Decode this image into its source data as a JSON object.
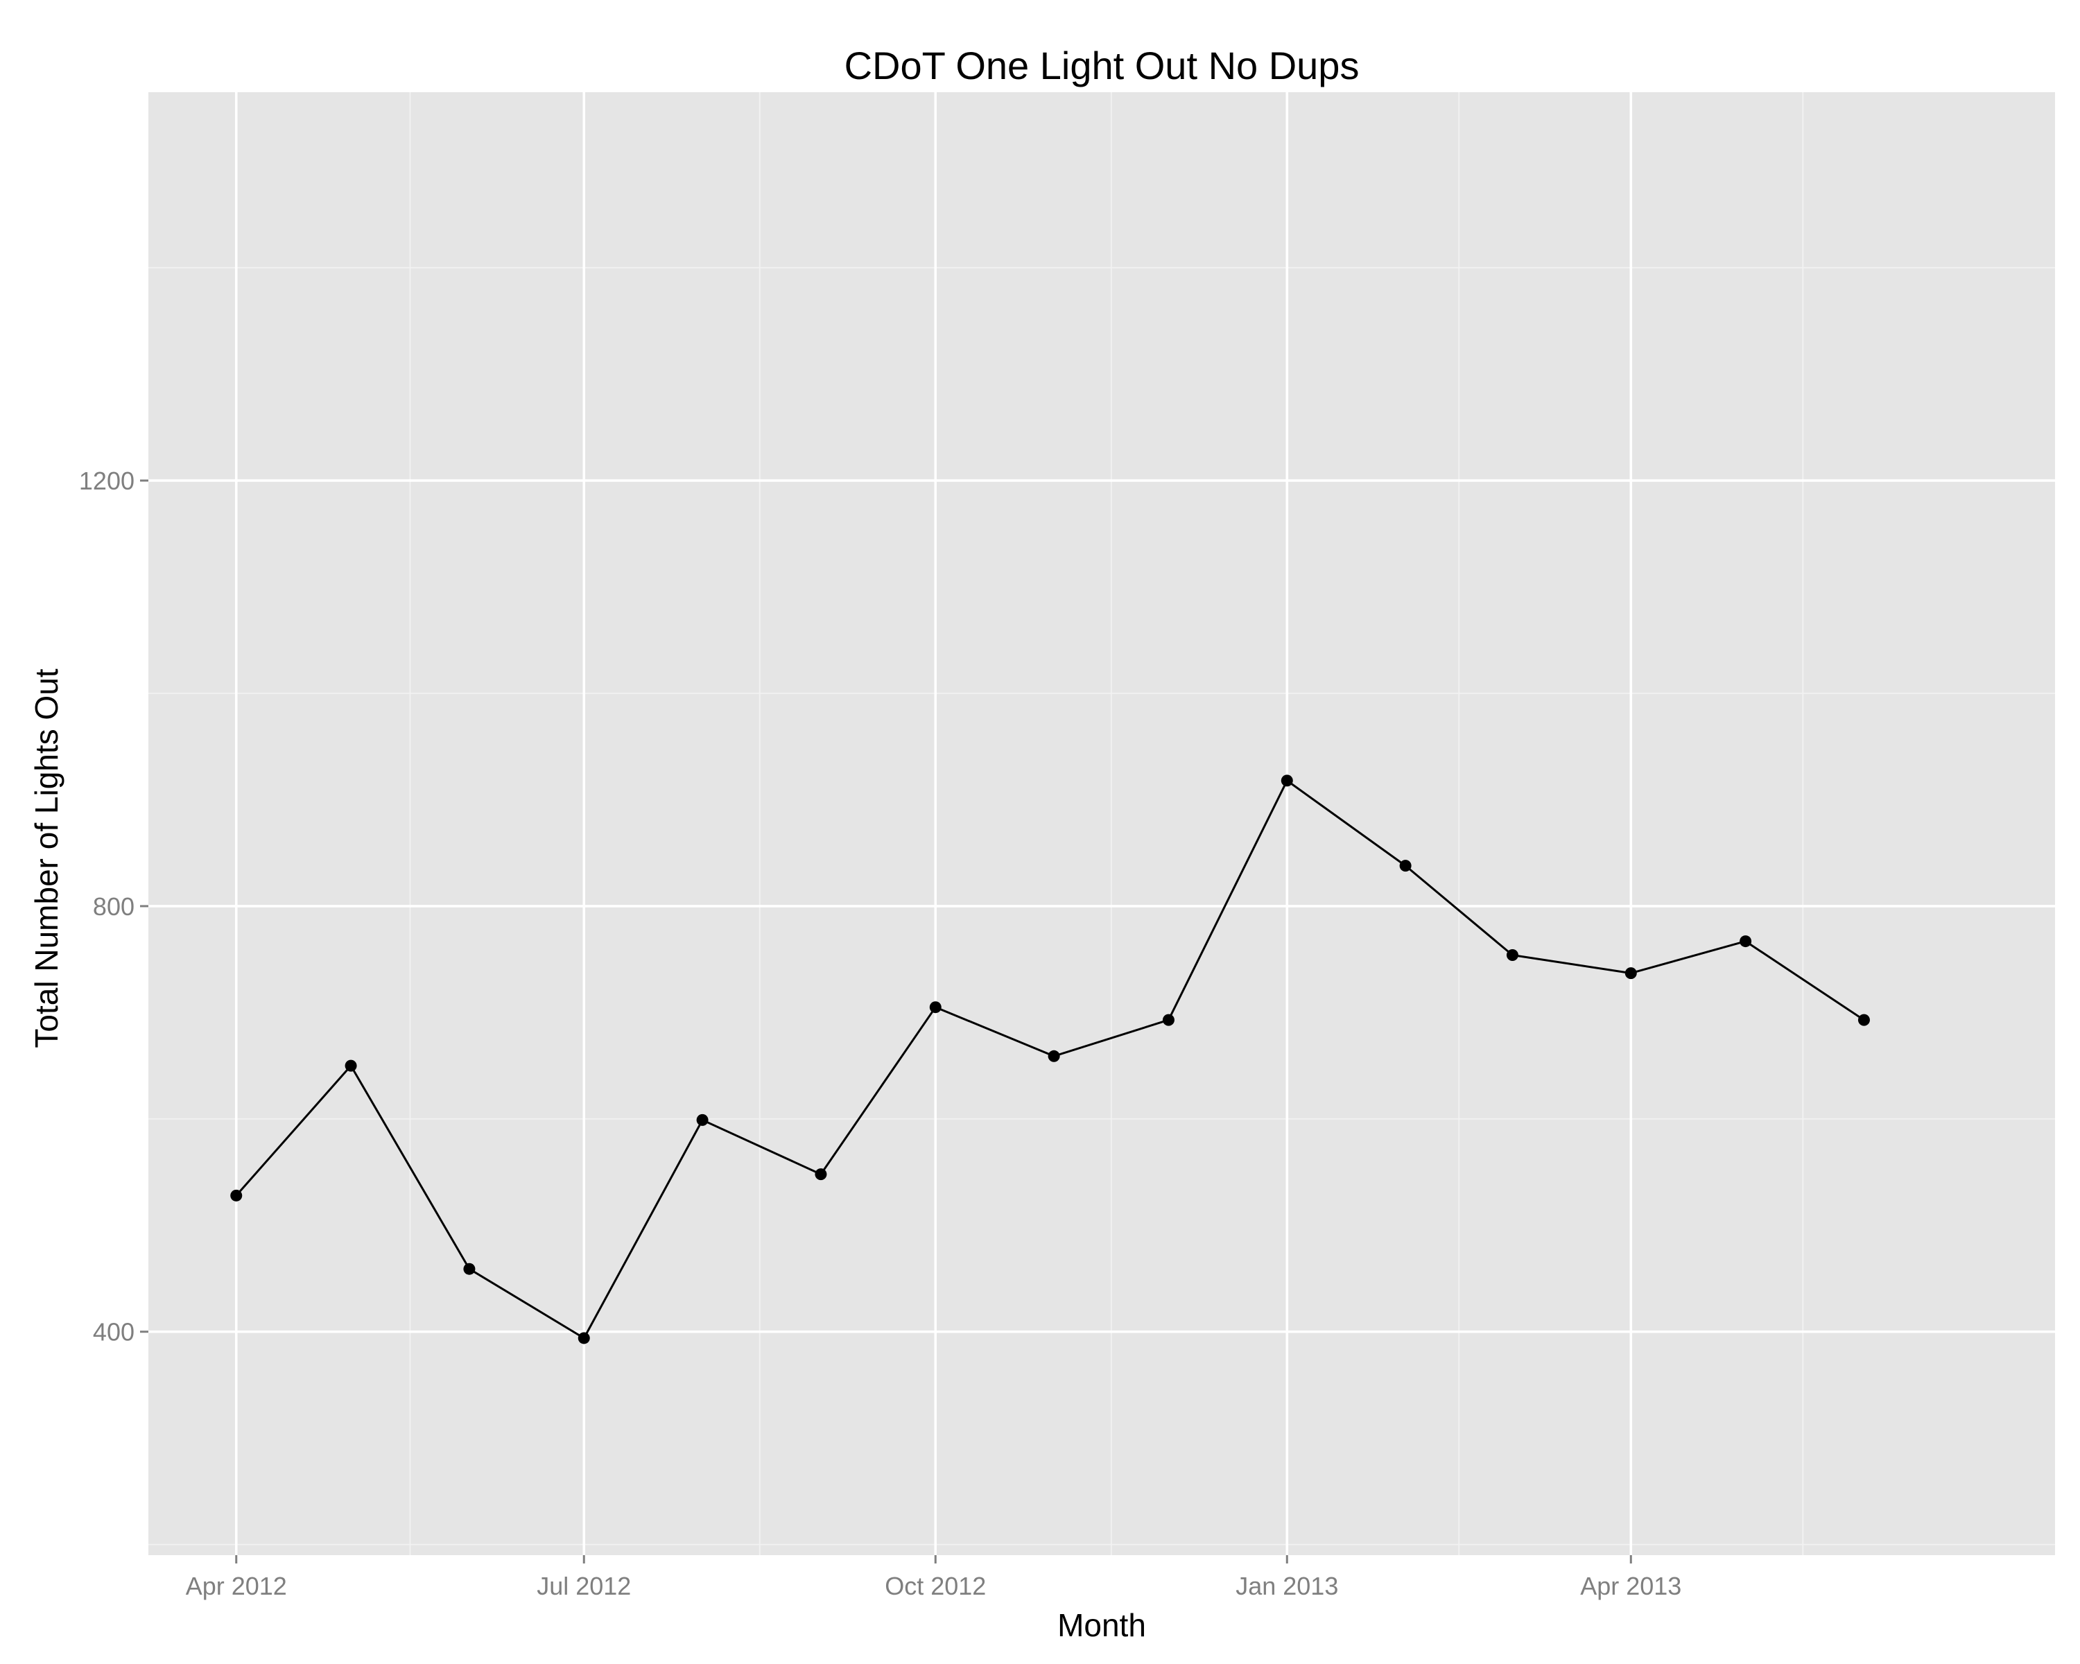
{
  "chart_data": {
    "type": "line",
    "title": "CDoT One Light Out No Dups",
    "xlabel": "Month",
    "ylabel": "Total Number of Lights Out",
    "x_ticks": [
      "Apr 2012",
      "Jul 2012",
      "Oct 2012",
      "Jan 2013",
      "Apr 2013"
    ],
    "y_ticks": [
      400,
      800,
      1200
    ],
    "ylim": [
      190,
      1565
    ],
    "xlim": [
      "2012-03-09",
      "2013-07-21"
    ],
    "grid": true,
    "legend": "none",
    "series": [
      {
        "color": "#000000",
        "points": [
          {
            "x": "2012-04-01",
            "y": 528
          },
          {
            "x": "2012-05-01",
            "y": 650
          },
          {
            "x": "2012-06-01",
            "y": 459
          },
          {
            "x": "2012-07-01",
            "y": 394
          },
          {
            "x": "2012-08-01",
            "y": 599
          },
          {
            "x": "2012-09-01",
            "y": 548
          },
          {
            "x": "2012-10-01",
            "y": 705
          },
          {
            "x": "2012-11-01",
            "y": 659
          },
          {
            "x": "2012-12-01",
            "y": 693
          },
          {
            "x": "2013-01-01",
            "y": 918
          },
          {
            "x": "2013-02-01",
            "y": 838
          },
          {
            "x": "2013-03-01",
            "y": 754
          },
          {
            "x": "2013-04-01",
            "y": 737
          },
          {
            "x": "2013-05-01",
            "y": 767
          },
          {
            "x": "2013-06-01",
            "y": 693
          }
        ]
      }
    ]
  }
}
